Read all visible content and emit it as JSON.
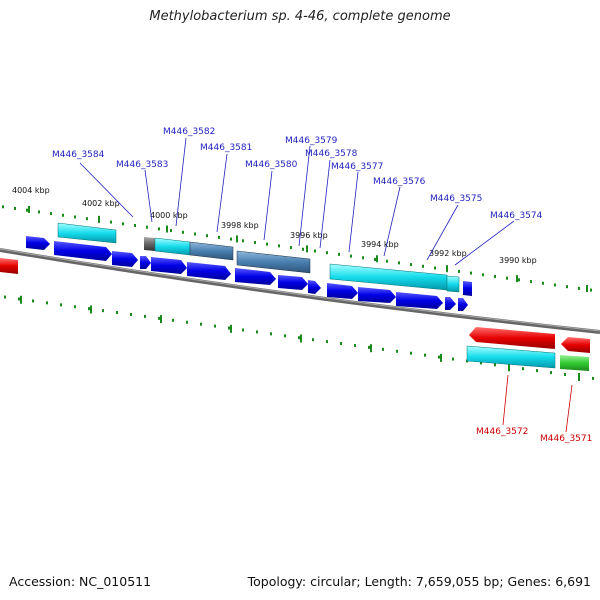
{
  "title": "Methylobacterium sp. 4-46, complete genome",
  "footer": {
    "accession": "Accession: NC_010511",
    "stats": "Topology: circular; Length: 7,659,055 bp; Genes: 6,691"
  },
  "ruler_labels": [
    "4004 kbp",
    "4002 kbp",
    "4000 kbp",
    "3998 kbp",
    "3996 kbp",
    "3994 kbp",
    "3992 kbp",
    "3990 kbp"
  ],
  "gene_labels_forward": [
    "M446_3584",
    "M446_3583",
    "M446_3582",
    "M446_3581",
    "M446_3580",
    "M446_3579",
    "M446_3578",
    "M446_3577",
    "M446_3576",
    "M446_3575",
    "M446_3574"
  ],
  "gene_labels_reverse": [
    "M446_3572",
    "M446_3571"
  ],
  "colors": {
    "forward_label": "#1f1fbf",
    "reverse_label": "#cc0000",
    "cds_blue": "#0000e6",
    "cds_cyan": "#00d0e0",
    "cds_steel": "#4a7fb0",
    "cds_red": "#e60000",
    "cds_green": "#33cc33",
    "tick_green": "#1a8a1a",
    "backbone": "#777777"
  }
}
